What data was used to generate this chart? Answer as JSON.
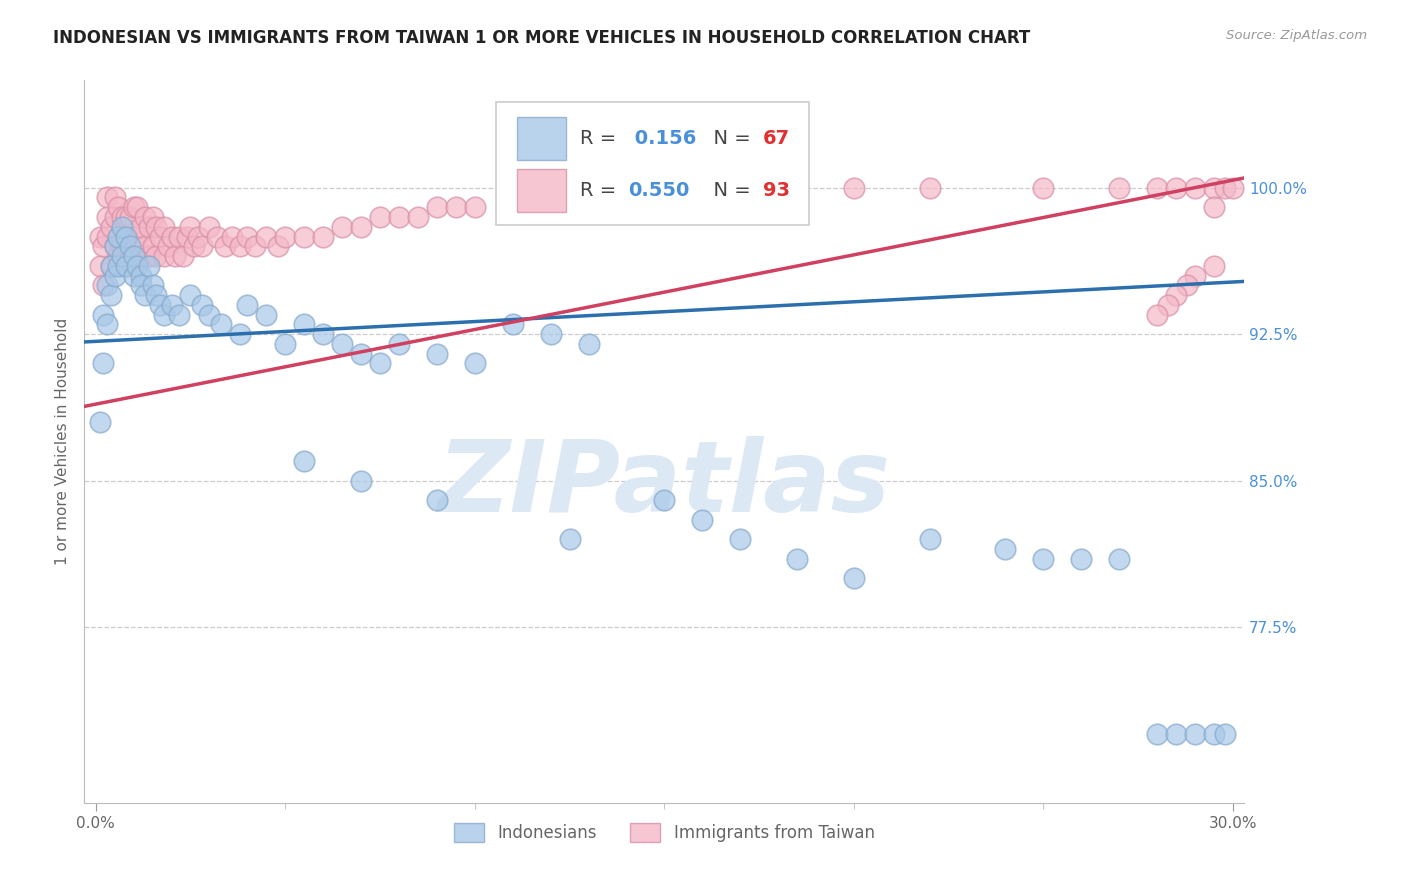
{
  "title": "INDONESIAN VS IMMIGRANTS FROM TAIWAN 1 OR MORE VEHICLES IN HOUSEHOLD CORRELATION CHART",
  "source": "Source: ZipAtlas.com",
  "ylabel": "1 or more Vehicles in Household",
  "xlim": [
    -0.003,
    0.303
  ],
  "ylim": [
    0.685,
    1.055
  ],
  "ytick_vals": [
    0.775,
    0.85,
    0.925,
    1.0
  ],
  "ytick_labels": [
    "77.5%",
    "85.0%",
    "92.5%",
    "100.0%"
  ],
  "xtick_vals": [
    0.0,
    0.3
  ],
  "xtick_labels": [
    "0.0%",
    "30.0%"
  ],
  "r_indonesian": 0.156,
  "n_indonesian": 67,
  "r_taiwan": 0.55,
  "n_taiwan": 93,
  "blue_color": "#a8c8e8",
  "blue_edge_color": "#88aacc",
  "pink_color": "#f4b8c8",
  "pink_edge_color": "#d890a8",
  "blue_line_color": "#2c6fad",
  "pink_line_color": "#d04060",
  "tick_color": "#4a90d9",
  "watermark": "ZIPatlas",
  "watermark_color": "#dce9f5",
  "title_fontsize": 12,
  "tick_fontsize": 11,
  "legend_fontsize": 14,
  "bottom_legend_label1": "Indonesians",
  "bottom_legend_label2": "Immigrants from Taiwan",
  "indo_x": [
    0.001,
    0.002,
    0.002,
    0.003,
    0.003,
    0.004,
    0.004,
    0.005,
    0.005,
    0.006,
    0.006,
    0.007,
    0.007,
    0.008,
    0.008,
    0.009,
    0.01,
    0.01,
    0.011,
    0.012,
    0.012,
    0.013,
    0.014,
    0.015,
    0.016,
    0.017,
    0.018,
    0.02,
    0.022,
    0.025,
    0.028,
    0.03,
    0.033,
    0.038,
    0.04,
    0.045,
    0.05,
    0.055,
    0.06,
    0.065,
    0.07,
    0.075,
    0.08,
    0.09,
    0.1,
    0.11,
    0.12,
    0.13,
    0.15,
    0.16,
    0.17,
    0.185,
    0.2,
    0.22,
    0.24,
    0.25,
    0.26,
    0.27,
    0.28,
    0.285,
    0.29,
    0.295,
    0.298,
    0.125,
    0.055,
    0.07,
    0.09
  ],
  "indo_y": [
    0.88,
    0.91,
    0.935,
    0.93,
    0.95,
    0.945,
    0.96,
    0.955,
    0.97,
    0.96,
    0.975,
    0.965,
    0.98,
    0.975,
    0.96,
    0.97,
    0.955,
    0.965,
    0.96,
    0.955,
    0.95,
    0.945,
    0.96,
    0.95,
    0.945,
    0.94,
    0.935,
    0.94,
    0.935,
    0.945,
    0.94,
    0.935,
    0.93,
    0.925,
    0.94,
    0.935,
    0.92,
    0.93,
    0.925,
    0.92,
    0.915,
    0.91,
    0.92,
    0.915,
    0.91,
    0.93,
    0.925,
    0.92,
    0.84,
    0.83,
    0.82,
    0.81,
    0.8,
    0.82,
    0.815,
    0.81,
    0.81,
    0.81,
    0.72,
    0.72,
    0.72,
    0.72,
    0.72,
    0.82,
    0.86,
    0.85,
    0.84
  ],
  "taiwan_x": [
    0.001,
    0.001,
    0.002,
    0.002,
    0.003,
    0.003,
    0.003,
    0.004,
    0.004,
    0.005,
    0.005,
    0.005,
    0.006,
    0.006,
    0.006,
    0.007,
    0.007,
    0.008,
    0.008,
    0.008,
    0.009,
    0.009,
    0.01,
    0.01,
    0.01,
    0.011,
    0.011,
    0.012,
    0.012,
    0.013,
    0.013,
    0.014,
    0.014,
    0.015,
    0.015,
    0.016,
    0.016,
    0.017,
    0.018,
    0.018,
    0.019,
    0.02,
    0.021,
    0.022,
    0.023,
    0.024,
    0.025,
    0.026,
    0.027,
    0.028,
    0.03,
    0.032,
    0.034,
    0.036,
    0.038,
    0.04,
    0.042,
    0.045,
    0.048,
    0.05,
    0.055,
    0.06,
    0.065,
    0.07,
    0.075,
    0.08,
    0.085,
    0.09,
    0.095,
    0.1,
    0.11,
    0.12,
    0.13,
    0.14,
    0.15,
    0.17,
    0.2,
    0.22,
    0.25,
    0.27,
    0.28,
    0.285,
    0.29,
    0.295,
    0.295,
    0.298,
    0.3,
    0.295,
    0.29,
    0.288,
    0.285,
    0.283,
    0.28
  ],
  "taiwan_y": [
    0.96,
    0.975,
    0.95,
    0.97,
    0.975,
    0.985,
    0.995,
    0.96,
    0.98,
    0.97,
    0.985,
    0.995,
    0.965,
    0.975,
    0.99,
    0.97,
    0.985,
    0.96,
    0.975,
    0.985,
    0.97,
    0.985,
    0.96,
    0.975,
    0.99,
    0.975,
    0.99,
    0.965,
    0.98,
    0.97,
    0.985,
    0.965,
    0.98,
    0.97,
    0.985,
    0.965,
    0.98,
    0.975,
    0.965,
    0.98,
    0.97,
    0.975,
    0.965,
    0.975,
    0.965,
    0.975,
    0.98,
    0.97,
    0.975,
    0.97,
    0.98,
    0.975,
    0.97,
    0.975,
    0.97,
    0.975,
    0.97,
    0.975,
    0.97,
    0.975,
    0.975,
    0.975,
    0.98,
    0.98,
    0.985,
    0.985,
    0.985,
    0.99,
    0.99,
    0.99,
    0.99,
    0.995,
    0.99,
    0.995,
    0.995,
    0.995,
    1.0,
    1.0,
    1.0,
    1.0,
    1.0,
    1.0,
    1.0,
    1.0,
    0.99,
    1.0,
    1.0,
    0.96,
    0.955,
    0.95,
    0.945,
    0.94,
    0.935
  ]
}
